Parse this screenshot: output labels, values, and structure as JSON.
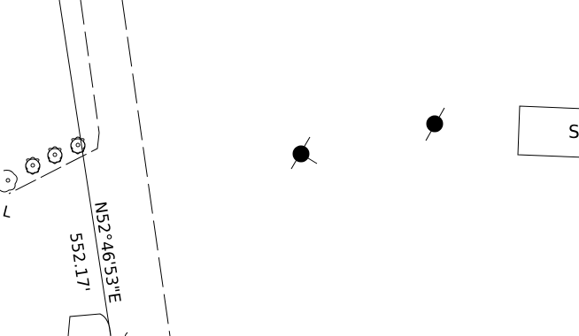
{
  "drawing": {
    "bearing_label": "N52°46'53\"E",
    "distance_label": "552.17'",
    "partial_label_left": "L",
    "building_label": "S",
    "line_color": "#000000",
    "background_color": "#ffffff"
  },
  "symbols": {
    "pole_symbol": "utility-pole-icon",
    "shrub_symbol": "shrub-icon"
  }
}
